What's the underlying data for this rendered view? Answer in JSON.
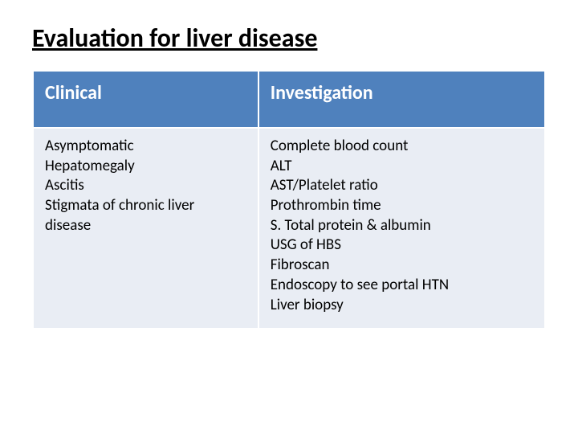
{
  "title": "Evaluation for liver disease",
  "table": {
    "header_bg": "#4f81bd",
    "header_fg": "#ffffff",
    "body_bg": "#e9edf4",
    "body_fg": "#000000",
    "border_color": "#ffffff",
    "col_widths": [
      "44%",
      "56%"
    ],
    "header_fontsize": 24,
    "body_fontsize": 19,
    "columns": [
      "Clinical",
      "Investigation"
    ],
    "rows": [
      {
        "clinical": [
          "Asymptomatic",
          "Hepatomegaly",
          "Ascitis",
          "Stigmata of chronic liver",
          "disease"
        ],
        "investigation": [
          "Complete blood count",
          "ALT",
          "AST/Platelet ratio",
          "Prothrombin time",
          "S. Total protein & albumin",
          "USG of HBS",
          "Fibroscan",
          "Endoscopy to see portal HTN",
          "Liver biopsy"
        ]
      }
    ]
  }
}
